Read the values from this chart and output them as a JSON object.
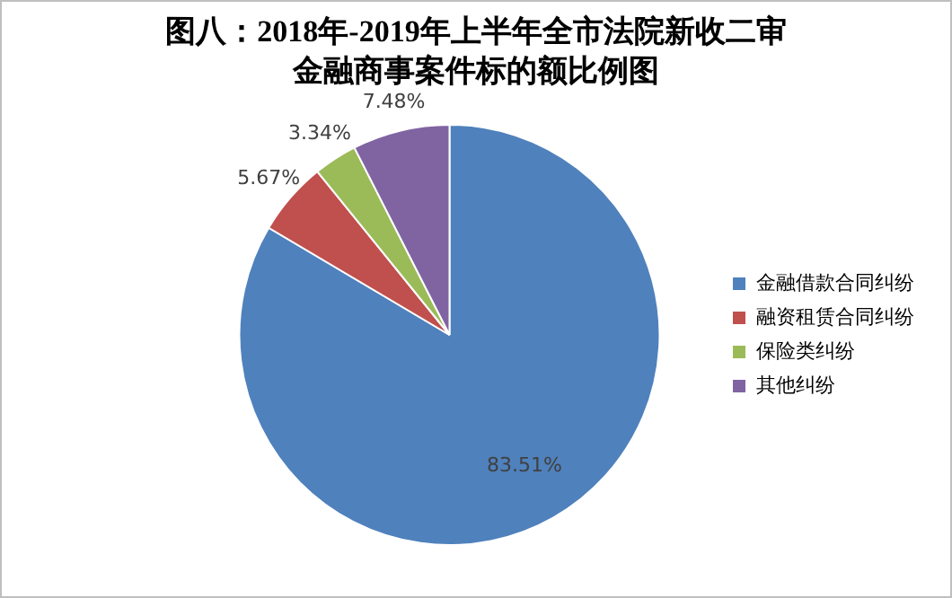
{
  "chart_data": {
    "type": "pie",
    "title": "图八：2018年-2019年上半年全市法院新收二审金融商事案件标的额比例图",
    "categories": [
      "金融借款合同纠纷",
      "融资租赁合同纠纷",
      "保险类纠纷",
      "其他纠纷"
    ],
    "values": [
      83.51,
      5.67,
      3.34,
      7.48
    ],
    "colors": [
      "#4f81bd",
      "#c0504d",
      "#9bbb59",
      "#8064a2"
    ],
    "value_labels": [
      "83.51%",
      "5.67%",
      "3.34%",
      "7.48%"
    ],
    "legend": "right"
  }
}
